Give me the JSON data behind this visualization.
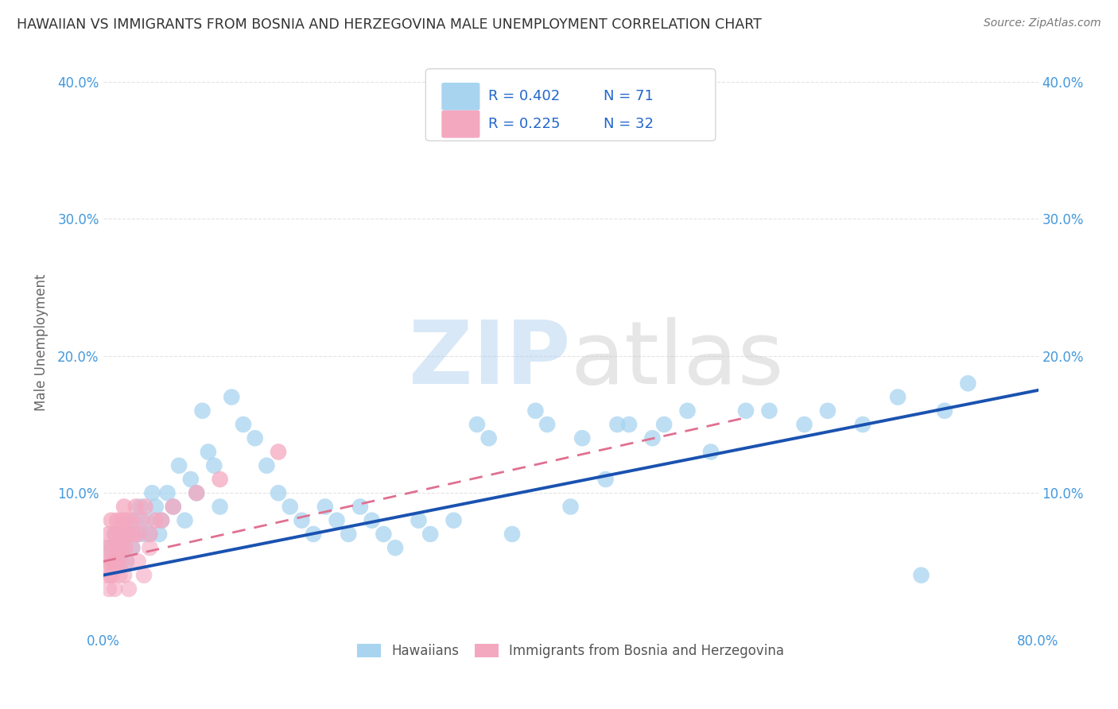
{
  "title": "HAWAIIAN VS IMMIGRANTS FROM BOSNIA AND HERZEGOVINA MALE UNEMPLOYMENT CORRELATION CHART",
  "source": "Source: ZipAtlas.com",
  "ylabel": "Male Unemployment",
  "xlim": [
    0.0,
    0.8
  ],
  "ylim": [
    0.0,
    0.42
  ],
  "xticks": [
    0.0,
    0.1,
    0.2,
    0.3,
    0.4,
    0.5,
    0.6,
    0.7,
    0.8
  ],
  "xticklabels": [
    "0.0%",
    "",
    "",
    "",
    "",
    "",
    "",
    "",
    "80.0%"
  ],
  "yticks": [
    0.0,
    0.1,
    0.2,
    0.3,
    0.4
  ],
  "yticklabels_left": [
    "",
    "10.0%",
    "20.0%",
    "30.0%",
    "40.0%"
  ],
  "yticklabels_right": [
    "",
    "10.0%",
    "20.0%",
    "30.0%",
    "40.0%"
  ],
  "blue_color": "#A8D4F0",
  "pink_color": "#F4A8C0",
  "blue_line_color": "#1A52B0",
  "pink_line_color": "#E07090",
  "legend_text_color": "#2266CC",
  "axis_tick_color": "#4499DD",
  "title_color": "#333333",
  "grid_color": "#DDDDDD",
  "bottom_legend_label1": "Hawaiians",
  "bottom_legend_label2": "Immigrants from Bosnia and Herzegovina",
  "hawaii_x": [
    0.005,
    0.008,
    0.01,
    0.012,
    0.015,
    0.016,
    0.018,
    0.02,
    0.022,
    0.025,
    0.027,
    0.03,
    0.032,
    0.035,
    0.038,
    0.04,
    0.042,
    0.045,
    0.048,
    0.05,
    0.055,
    0.06,
    0.065,
    0.07,
    0.075,
    0.08,
    0.085,
    0.09,
    0.095,
    0.1,
    0.11,
    0.12,
    0.13,
    0.14,
    0.15,
    0.16,
    0.17,
    0.18,
    0.19,
    0.2,
    0.21,
    0.22,
    0.23,
    0.24,
    0.25,
    0.27,
    0.28,
    0.3,
    0.32,
    0.33,
    0.35,
    0.37,
    0.38,
    0.4,
    0.41,
    0.43,
    0.44,
    0.45,
    0.47,
    0.48,
    0.5,
    0.52,
    0.55,
    0.57,
    0.6,
    0.62,
    0.65,
    0.68,
    0.7,
    0.72,
    0.74
  ],
  "hawaii_y": [
    0.06,
    0.05,
    0.07,
    0.06,
    0.05,
    0.07,
    0.06,
    0.05,
    0.07,
    0.06,
    0.08,
    0.07,
    0.09,
    0.07,
    0.08,
    0.07,
    0.1,
    0.09,
    0.07,
    0.08,
    0.1,
    0.09,
    0.12,
    0.08,
    0.11,
    0.1,
    0.16,
    0.13,
    0.12,
    0.09,
    0.17,
    0.15,
    0.14,
    0.12,
    0.1,
    0.09,
    0.08,
    0.07,
    0.09,
    0.08,
    0.07,
    0.09,
    0.08,
    0.07,
    0.06,
    0.08,
    0.07,
    0.08,
    0.15,
    0.14,
    0.07,
    0.16,
    0.15,
    0.09,
    0.14,
    0.11,
    0.15,
    0.15,
    0.14,
    0.15,
    0.16,
    0.13,
    0.16,
    0.16,
    0.15,
    0.16,
    0.15,
    0.17,
    0.04,
    0.16,
    0.18
  ],
  "bosnia_x": [
    0.003,
    0.004,
    0.005,
    0.006,
    0.007,
    0.008,
    0.009,
    0.01,
    0.011,
    0.012,
    0.013,
    0.014,
    0.015,
    0.016,
    0.017,
    0.018,
    0.019,
    0.02,
    0.022,
    0.024,
    0.026,
    0.028,
    0.03,
    0.033,
    0.036,
    0.04,
    0.045,
    0.05,
    0.06,
    0.08,
    0.1,
    0.15
  ],
  "bosnia_y": [
    0.06,
    0.05,
    0.07,
    0.04,
    0.08,
    0.06,
    0.05,
    0.07,
    0.05,
    0.08,
    0.06,
    0.07,
    0.06,
    0.08,
    0.07,
    0.09,
    0.06,
    0.08,
    0.07,
    0.08,
    0.07,
    0.09,
    0.07,
    0.08,
    0.09,
    0.07,
    0.08,
    0.08,
    0.09,
    0.1,
    0.11,
    0.13
  ],
  "extra_pink_x": [
    0.003,
    0.005,
    0.006,
    0.008,
    0.01,
    0.012,
    0.014,
    0.016,
    0.018,
    0.02,
    0.022,
    0.025,
    0.03,
    0.035,
    0.04
  ],
  "extra_pink_y": [
    0.04,
    0.03,
    0.05,
    0.04,
    0.03,
    0.05,
    0.04,
    0.05,
    0.04,
    0.05,
    0.03,
    0.06,
    0.05,
    0.04,
    0.06
  ],
  "blue_line_x0": 0.0,
  "blue_line_y0": 0.04,
  "blue_line_x1": 0.8,
  "blue_line_y1": 0.175,
  "pink_line_x0": 0.0,
  "pink_line_y0": 0.05,
  "pink_line_x1": 0.55,
  "pink_line_y1": 0.155
}
